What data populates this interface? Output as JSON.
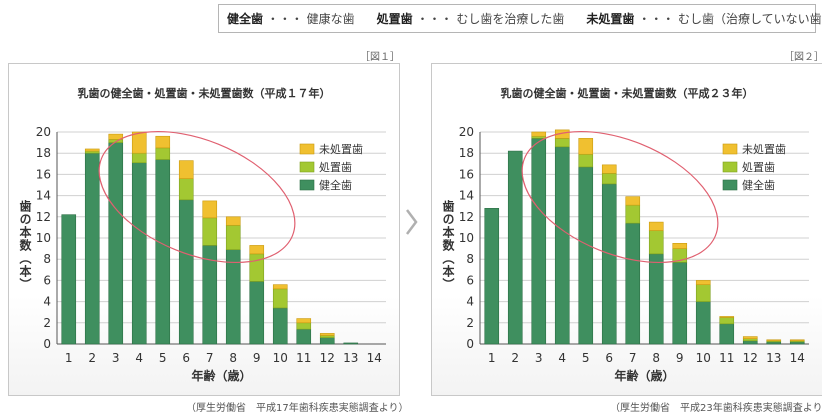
{
  "legend_top": [
    {
      "term": "健全歯",
      "desc": "・・・ 健康な歯"
    },
    {
      "term": "処置歯",
      "desc": "・・・ むし歯を治療した歯"
    },
    {
      "term": "未処置歯",
      "desc": "・・・ むし歯（治療していない歯）"
    }
  ],
  "colors": {
    "healthy": "#3f8f5f",
    "treated": "#a3c832",
    "untreated": "#f0c030",
    "ellipse": "#e06070"
  },
  "chart_data": [
    {
      "type": "bar",
      "stacked": true,
      "fig_label": "［図１］",
      "title": "乳歯の健全歯・処置歯・未処置歯数（平成１７年）",
      "xlabel": "年齢（歳）",
      "ylabel": "歯の本数（本）",
      "ylim": [
        0,
        20
      ],
      "yticks": [
        "0",
        "2",
        "4",
        "6",
        "8",
        "10",
        "12",
        "14",
        "16",
        "18",
        "20"
      ],
      "grid": true,
      "legend_position": "top-right",
      "categories": [
        "1",
        "2",
        "3",
        "4",
        "5",
        "6",
        "7",
        "8",
        "9",
        "10",
        "11",
        "12",
        "13",
        "14"
      ],
      "series": [
        {
          "name": "健全歯",
          "values": [
            12.2,
            18.0,
            19.0,
            17.1,
            17.4,
            13.6,
            9.3,
            8.9,
            5.9,
            3.4,
            1.4,
            0.6,
            0.1,
            0.0
          ]
        },
        {
          "name": "処置歯",
          "values": [
            0.0,
            0.2,
            0.3,
            0.9,
            1.1,
            2.0,
            2.6,
            2.3,
            2.6,
            1.8,
            0.6,
            0.2,
            0.0,
            0.0
          ]
        },
        {
          "name": "未処置歯",
          "values": [
            0.0,
            0.2,
            0.5,
            2.0,
            1.1,
            1.7,
            1.6,
            0.8,
            0.8,
            0.4,
            0.4,
            0.2,
            0.0,
            0.0
          ]
        }
      ],
      "source": "（厚生労働省　平成17年歯科疾患実態調査より）"
    },
    {
      "type": "bar",
      "stacked": true,
      "fig_label": "［図２］",
      "title": "乳歯の健全歯・処置歯・未処置歯数（平成２３年）",
      "xlabel": "年齢（歳）",
      "ylabel": "歯の本数（本）",
      "ylim": [
        0,
        20
      ],
      "yticks": [
        "0",
        "2",
        "4",
        "6",
        "8",
        "10",
        "12",
        "14",
        "16",
        "18",
        "20"
      ],
      "grid": true,
      "legend_position": "top-right",
      "categories": [
        "1",
        "2",
        "3",
        "4",
        "5",
        "6",
        "7",
        "8",
        "9",
        "10",
        "11",
        "12",
        "13",
        "14"
      ],
      "series": [
        {
          "name": "健全歯",
          "values": [
            12.8,
            18.2,
            19.4,
            18.6,
            16.7,
            15.1,
            11.4,
            8.5,
            7.7,
            4.0,
            1.9,
            0.3,
            0.2,
            0.2
          ]
        },
        {
          "name": "処置歯",
          "values": [
            0.0,
            0.0,
            0.2,
            0.8,
            1.2,
            1.0,
            1.7,
            2.2,
            1.3,
            1.6,
            0.6,
            0.2,
            0.1,
            0.1
          ]
        },
        {
          "name": "未処置歯",
          "values": [
            0.0,
            0.0,
            0.4,
            0.8,
            1.5,
            0.8,
            0.8,
            0.8,
            0.5,
            0.4,
            0.1,
            0.2,
            0.1,
            0.1
          ]
        }
      ],
      "source": "（厚生労働省　平成23年歯科疾患実態調査より）"
    }
  ]
}
